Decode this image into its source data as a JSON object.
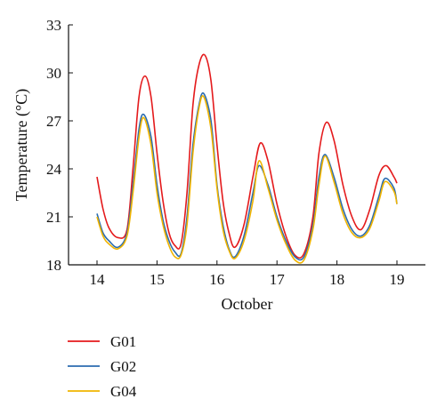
{
  "chart_data": {
    "type": "line",
    "title": "",
    "xlabel": "October",
    "ylabel": "Temperature (°C)",
    "xlim": [
      14,
      19
    ],
    "ylim": [
      18,
      33
    ],
    "x_ticks": [
      14,
      15,
      16,
      17,
      18,
      19
    ],
    "x_tick_labels": [
      "14",
      "15",
      "16",
      "17",
      "18",
      "19"
    ],
    "y_ticks": [
      18,
      21,
      24,
      27,
      30,
      33
    ],
    "y_tick_labels": [
      "18",
      "21",
      "24",
      "27",
      "30",
      "33"
    ],
    "grid": false,
    "legend_position": "bottom-left",
    "series": [
      {
        "name": "G01",
        "color": "#e41a1c",
        "x": [
          14.0,
          14.1,
          14.2,
          14.35,
          14.5,
          14.6,
          14.7,
          14.8,
          14.9,
          15.0,
          15.1,
          15.2,
          15.3,
          15.4,
          15.5,
          15.6,
          15.7,
          15.8,
          15.9,
          16.0,
          16.1,
          16.2,
          16.3,
          16.45,
          16.6,
          16.72,
          16.85,
          17.0,
          17.15,
          17.3,
          17.45,
          17.6,
          17.7,
          17.82,
          17.95,
          18.1,
          18.25,
          18.4,
          18.55,
          18.7,
          18.82,
          18.95,
          19.0
        ],
        "y": [
          23.5,
          21.5,
          20.3,
          19.7,
          20.2,
          24.0,
          28.5,
          29.8,
          28.5,
          25.0,
          22.0,
          20.0,
          19.2,
          19.3,
          22.5,
          28.0,
          30.5,
          31.1,
          29.5,
          25.5,
          22.0,
          20.0,
          19.1,
          20.5,
          23.5,
          25.6,
          24.5,
          21.8,
          19.8,
          18.6,
          18.7,
          21.0,
          25.0,
          26.9,
          25.8,
          23.0,
          21.0,
          20.2,
          21.5,
          23.6,
          24.2,
          23.5,
          23.1
        ]
      },
      {
        "name": "G02",
        "color": "#2b6cb0",
        "x": [
          14.0,
          14.1,
          14.2,
          14.35,
          14.5,
          14.6,
          14.7,
          14.78,
          14.9,
          15.0,
          15.1,
          15.2,
          15.3,
          15.4,
          15.5,
          15.6,
          15.7,
          15.78,
          15.9,
          16.0,
          16.1,
          16.2,
          16.3,
          16.45,
          16.6,
          16.7,
          16.85,
          17.0,
          17.15,
          17.3,
          17.45,
          17.6,
          17.7,
          17.8,
          17.95,
          18.1,
          18.25,
          18.4,
          18.55,
          18.7,
          18.8,
          18.95,
          19.0
        ],
        "y": [
          21.2,
          20.0,
          19.5,
          19.1,
          20.0,
          23.0,
          26.5,
          27.4,
          26.0,
          23.0,
          20.8,
          19.5,
          18.8,
          18.7,
          21.0,
          25.5,
          28.0,
          28.7,
          27.0,
          23.0,
          20.5,
          19.0,
          18.5,
          19.8,
          22.5,
          24.2,
          23.0,
          21.0,
          19.5,
          18.5,
          18.5,
          20.5,
          23.5,
          24.9,
          23.5,
          21.5,
          20.2,
          19.8,
          20.5,
          22.3,
          23.4,
          22.8,
          21.8
        ]
      },
      {
        "name": "G04",
        "color": "#f0b400",
        "x": [
          14.0,
          14.1,
          14.2,
          14.35,
          14.5,
          14.6,
          14.7,
          14.78,
          14.9,
          15.0,
          15.1,
          15.2,
          15.3,
          15.4,
          15.5,
          15.6,
          15.7,
          15.78,
          15.9,
          16.0,
          16.1,
          16.2,
          16.3,
          16.45,
          16.6,
          16.7,
          16.85,
          17.0,
          17.15,
          17.3,
          17.45,
          17.6,
          17.7,
          17.8,
          17.95,
          18.1,
          18.25,
          18.4,
          18.55,
          18.7,
          18.8,
          18.95,
          19.0
        ],
        "y": [
          21.0,
          19.8,
          19.3,
          19.0,
          19.8,
          22.5,
          26.0,
          27.2,
          25.5,
          22.5,
          20.5,
          19.2,
          18.5,
          18.6,
          20.5,
          25.0,
          27.8,
          28.5,
          26.5,
          22.8,
          20.2,
          18.9,
          18.4,
          19.5,
          22.0,
          24.5,
          22.8,
          20.8,
          19.3,
          18.3,
          18.3,
          20.2,
          23.0,
          24.8,
          23.2,
          21.2,
          20.0,
          19.7,
          20.3,
          22.0,
          23.2,
          22.6,
          21.8
        ]
      }
    ]
  }
}
